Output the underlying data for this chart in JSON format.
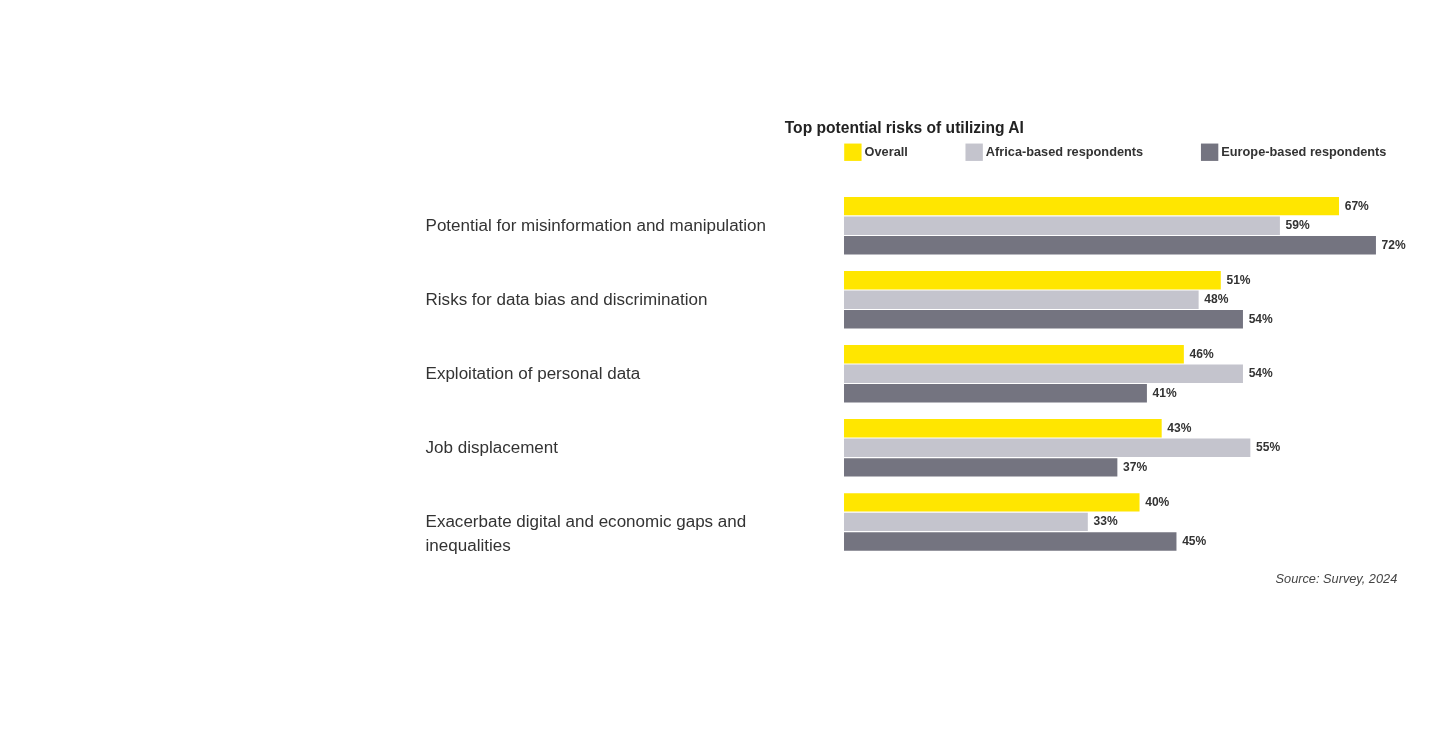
{
  "chart_data": {
    "type": "bar",
    "orientation": "horizontal",
    "title": "Top potential risks of utilizing AI",
    "categories": [
      "Potential for misinformation and manipulation",
      "Risks for data bias and discrimination",
      "Exploitation of personal data",
      "Job displacement",
      "Exacerbate digital and economic gaps and inequalities"
    ],
    "series": [
      {
        "name": "Overall",
        "color": "#ffe600",
        "values": [
          67,
          51,
          46,
          43,
          40
        ],
        "value_labels": [
          "67%",
          "51%",
          "46%",
          "43%",
          "40%"
        ]
      },
      {
        "name": "Africa-based respondents",
        "color": "#c4c4cd",
        "values": [
          59,
          48,
          54,
          55,
          33
        ],
        "value_labels": [
          "59%",
          "48%",
          "54%",
          "55%",
          "33%"
        ]
      },
      {
        "name": "Europe-based respondents",
        "color": "#747480",
        "values": [
          72,
          54,
          41,
          37,
          45
        ],
        "value_labels": [
          "72%",
          "54%",
          "41%",
          "37%",
          "45%"
        ]
      }
    ],
    "legend": "top",
    "annotations": [
      "Source: Survey, 2024"
    ]
  }
}
